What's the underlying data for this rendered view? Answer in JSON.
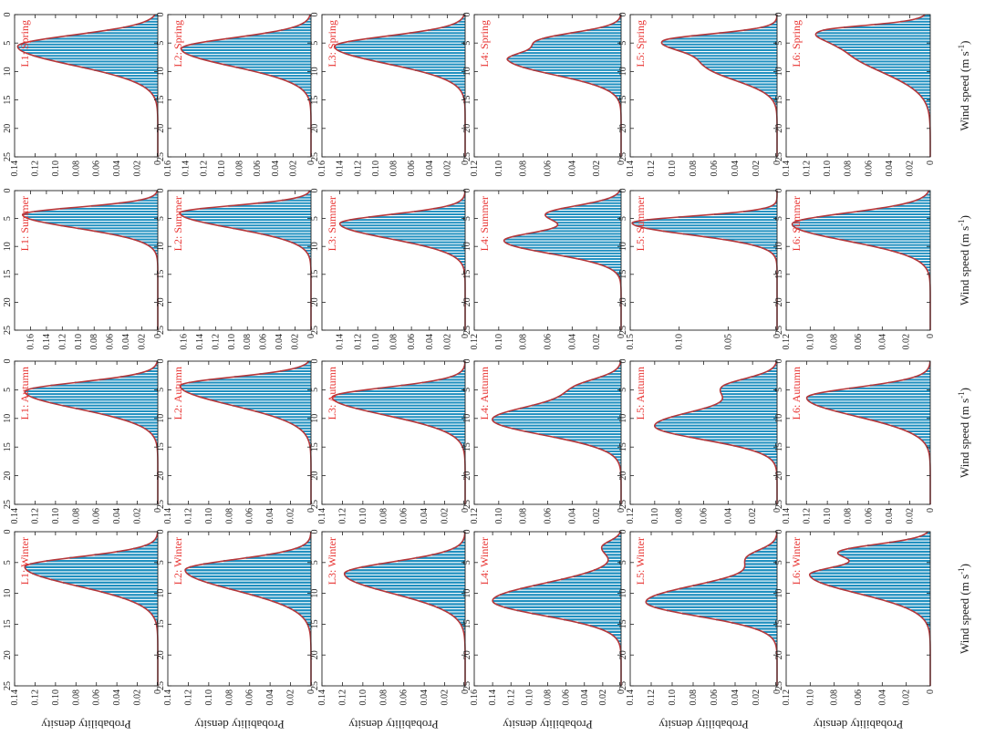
{
  "figure": {
    "x_axis_label": "Wind speed (m s",
    "x_axis_label_sup": "-1",
    "x_axis_label_end": ")",
    "y_axis_label": "Probability density",
    "x_ticks": [
      "0",
      "5",
      "10",
      "15",
      "20",
      "25"
    ],
    "bar_color": "#1f8fbf",
    "bar_stripe_color": "#ffffff",
    "curve_color": "#b5373a",
    "title_color": "#e8312f"
  },
  "chart_data": [
    {
      "type": "bar",
      "title": "L1: Spring",
      "xlim": [
        0,
        25
      ],
      "ylim": [
        0,
        0.14
      ],
      "y_ticks": [
        "0.02",
        "0.04",
        "0.06",
        "0.08",
        "0.10",
        "0.12",
        "0.14"
      ],
      "peaks": [
        {
          "mu": 5.6,
          "s1": 2.0,
          "s2": 3.3,
          "h": 0.137
        }
      ]
    },
    {
      "type": "bar",
      "title": "L1: Summer",
      "xlim": [
        0,
        25
      ],
      "ylim": [
        0,
        0.18
      ],
      "y_ticks": [
        "0.02",
        "0.04",
        "0.06",
        "0.08",
        "0.10",
        "0.12",
        "0.14",
        "0.16"
      ],
      "peaks": [
        {
          "mu": 4.3,
          "s1": 1.3,
          "s2": 2.4,
          "h": 0.17
        }
      ]
    },
    {
      "type": "bar",
      "title": "L1: Autumn",
      "xlim": [
        0,
        25
      ],
      "ylim": [
        0,
        0.14
      ],
      "y_ticks": [
        "0.02",
        "0.04",
        "0.06",
        "0.08",
        "0.10",
        "0.12",
        "0.14"
      ],
      "peaks": [
        {
          "mu": 5.3,
          "s1": 1.6,
          "s2": 3.0,
          "h": 0.13
        }
      ]
    },
    {
      "type": "bar",
      "title": "L1: Winter",
      "xlim": [
        0,
        25
      ],
      "ylim": [
        0,
        0.14
      ],
      "y_ticks": [
        "0.02",
        "0.04",
        "0.06",
        "0.08",
        "0.10",
        "0.12",
        "0.14"
      ],
      "peaks": [
        {
          "mu": 5.7,
          "s1": 1.6,
          "s2": 3.1,
          "h": 0.13
        }
      ]
    },
    {
      "type": "bar",
      "title": "L2: Spring",
      "xlim": [
        0,
        25
      ],
      "ylim": [
        0,
        0.16
      ],
      "y_ticks": [
        "0.02",
        "0.04",
        "0.06",
        "0.08",
        "0.10",
        "0.12",
        "0.14",
        "0.16"
      ],
      "peaks": [
        {
          "mu": 6.0,
          "s1": 1.9,
          "s2": 3.1,
          "h": 0.145
        }
      ]
    },
    {
      "type": "bar",
      "title": "L2: Summer",
      "xlim": [
        0,
        25
      ],
      "ylim": [
        0,
        0.18
      ],
      "y_ticks": [
        "0.02",
        "0.04",
        "0.06",
        "0.08",
        "0.10",
        "0.12",
        "0.14",
        "0.16"
      ],
      "peaks": [
        {
          "mu": 4.0,
          "s1": 1.3,
          "s2": 2.7,
          "h": 0.165
        }
      ]
    },
    {
      "type": "bar",
      "title": "L2: Autumn",
      "xlim": [
        0,
        25
      ],
      "ylim": [
        0,
        0.14
      ],
      "y_ticks": [
        "0.02",
        "0.04",
        "0.06",
        "0.08",
        "0.10",
        "0.12",
        "0.14"
      ],
      "peaks": [
        {
          "mu": 4.3,
          "s1": 1.5,
          "s2": 3.4,
          "h": 0.128
        }
      ]
    },
    {
      "type": "bar",
      "title": "L2: Winter",
      "xlim": [
        0,
        25
      ],
      "ylim": [
        0,
        0.14
      ],
      "y_ticks": [
        "0.02",
        "0.04",
        "0.06",
        "0.08",
        "0.10",
        "0.12",
        "0.14"
      ],
      "peaks": [
        {
          "mu": 6.2,
          "s1": 1.7,
          "s2": 3.3,
          "h": 0.123
        }
      ]
    },
    {
      "type": "bar",
      "title": "L3: Spring",
      "xlim": [
        0,
        25
      ],
      "ylim": [
        0,
        0.16
      ],
      "y_ticks": [
        "0.02",
        "0.04",
        "0.06",
        "0.08",
        "0.10",
        "0.12",
        "0.14",
        "0.16"
      ],
      "peaks": [
        {
          "mu": 5.6,
          "s1": 1.8,
          "s2": 3.0,
          "h": 0.146
        }
      ]
    },
    {
      "type": "bar",
      "title": "L3: Summer",
      "xlim": [
        0,
        25
      ],
      "ylim": [
        0,
        0.16
      ],
      "y_ticks": [
        "0.02",
        "0.04",
        "0.06",
        "0.08",
        "0.10",
        "0.12",
        "0.14"
      ],
      "peaks": [
        {
          "mu": 5.9,
          "s1": 1.6,
          "s2": 2.7,
          "h": 0.14
        }
      ]
    },
    {
      "type": "bar",
      "title": "L3: Autumn",
      "xlim": [
        0,
        25
      ],
      "ylim": [
        0,
        0.14
      ],
      "y_ticks": [
        "0.02",
        "0.04",
        "0.06",
        "0.08",
        "0.10",
        "0.12",
        "0.14"
      ],
      "peaks": [
        {
          "mu": 6.3,
          "s1": 1.7,
          "s2": 3.1,
          "h": 0.13
        }
      ]
    },
    {
      "type": "bar",
      "title": "L3: Winter",
      "xlim": [
        0,
        25
      ],
      "ylim": [
        0,
        0.14
      ],
      "y_ticks": [
        "0.02",
        "0.04",
        "0.06",
        "0.08",
        "0.10",
        "0.12",
        "0.14"
      ],
      "peaks": [
        {
          "mu": 6.8,
          "s1": 1.9,
          "s2": 3.2,
          "h": 0.118
        }
      ]
    },
    {
      "type": "bar",
      "title": "L4: Spring",
      "xlim": [
        0,
        25
      ],
      "ylim": [
        0,
        0.12
      ],
      "y_ticks": [
        "0.02",
        "0.04",
        "0.06",
        "0.08",
        "0.10",
        "0.12"
      ],
      "peaks": [
        {
          "mu": 4.5,
          "s1": 1.4,
          "s2": 1.4,
          "h": 0.06
        },
        {
          "mu": 8.0,
          "s1": 1.6,
          "s2": 2.6,
          "h": 0.09
        }
      ]
    },
    {
      "type": "bar",
      "title": "L4: Summer",
      "xlim": [
        0,
        25
      ],
      "ylim": [
        0,
        0.12
      ],
      "y_ticks": [
        "0.02",
        "0.04",
        "0.06",
        "0.08",
        "0.10",
        "0.12"
      ],
      "peaks": [
        {
          "mu": 4.2,
          "s1": 1.5,
          "s2": 1.6,
          "h": 0.06
        },
        {
          "mu": 9.0,
          "s1": 1.7,
          "s2": 2.3,
          "h": 0.095
        }
      ]
    },
    {
      "type": "bar",
      "title": "L4: Autumn",
      "xlim": [
        0,
        25
      ],
      "ylim": [
        0,
        0.12
      ],
      "y_ticks": [
        "0.02",
        "0.04",
        "0.06",
        "0.08",
        "0.10",
        "0.12"
      ],
      "peaks": [
        {
          "mu": 4.5,
          "s1": 1.5,
          "s2": 1.8,
          "h": 0.03
        },
        {
          "mu": 10.2,
          "s1": 2.6,
          "s2": 2.7,
          "h": 0.105
        }
      ]
    },
    {
      "type": "bar",
      "title": "L4: Winter",
      "xlim": [
        0,
        25
      ],
      "ylim": [
        0,
        0.16
      ],
      "y_ticks": [
        "0.02",
        "0.04",
        "0.06",
        "0.08",
        "0.10",
        "0.12",
        "0.14",
        "0.16"
      ],
      "peaks": [
        {
          "mu": 2.5,
          "s1": 1.0,
          "s2": 1.3,
          "h": 0.02
        },
        {
          "mu": 11.2,
          "s1": 2.8,
          "s2": 2.4,
          "h": 0.14
        }
      ]
    },
    {
      "type": "bar",
      "title": "L5: Spring",
      "xlim": [
        0,
        25
      ],
      "ylim": [
        0,
        0.14
      ],
      "y_ticks": [
        "0.02",
        "0.04",
        "0.06",
        "0.08",
        "0.10",
        "0.12",
        "0.14"
      ],
      "peaks": [
        {
          "mu": 4.6,
          "s1": 1.2,
          "s2": 1.8,
          "h": 0.1
        },
        {
          "mu": 9.0,
          "s1": 2.2,
          "s2": 2.6,
          "h": 0.065
        }
      ]
    },
    {
      "type": "bar",
      "title": "L5: Summer",
      "xlim": [
        0,
        25
      ],
      "ylim": [
        0,
        0.15
      ],
      "y_ticks": [
        "0.05",
        "0.10",
        "0.15"
      ],
      "peaks": [
        {
          "mu": 5.8,
          "s1": 1.2,
          "s2": 2.1,
          "h": 0.148
        }
      ]
    },
    {
      "type": "bar",
      "title": "L5: Autumn",
      "xlim": [
        0,
        25
      ],
      "ylim": [
        0,
        0.12
      ],
      "y_ticks": [
        "0.02",
        "0.04",
        "0.06",
        "0.08",
        "0.10",
        "0.12"
      ],
      "peaks": [
        {
          "mu": 4.5,
          "s1": 1.5,
          "s2": 1.8,
          "h": 0.04
        },
        {
          "mu": 11.3,
          "s1": 2.8,
          "s2": 2.4,
          "h": 0.1
        }
      ]
    },
    {
      "type": "bar",
      "title": "L5: Winter",
      "xlim": [
        0,
        25
      ],
      "ylim": [
        0,
        0.14
      ],
      "y_ticks": [
        "0.02",
        "0.04",
        "0.06",
        "0.08",
        "0.10",
        "0.12",
        "0.14"
      ],
      "peaks": [
        {
          "mu": 4.2,
          "s1": 1.3,
          "s2": 1.5,
          "h": 0.025
        },
        {
          "mu": 11.4,
          "s1": 2.8,
          "s2": 2.3,
          "h": 0.125
        }
      ]
    },
    {
      "type": "bar",
      "title": "L6: Spring",
      "xlim": [
        0,
        25
      ],
      "ylim": [
        0,
        0.14
      ],
      "y_ticks": [
        "0.02",
        "0.04",
        "0.06",
        "0.08",
        "0.10",
        "0.12",
        "0.14"
      ],
      "peaks": [
        {
          "mu": 2.8,
          "s1": 0.9,
          "s2": 1.5,
          "h": 0.07
        },
        {
          "mu": 6.0,
          "s1": 2.5,
          "s2": 4.0,
          "h": 0.08
        }
      ]
    },
    {
      "type": "bar",
      "title": "L6: Summer",
      "xlim": [
        0,
        25
      ],
      "ylim": [
        0,
        0.12
      ],
      "y_ticks": [
        "0.02",
        "0.04",
        "0.06",
        "0.08",
        "0.10",
        "0.12"
      ],
      "peaks": [
        {
          "mu": 6.0,
          "s1": 2.0,
          "s2": 3.0,
          "h": 0.115
        }
      ]
    },
    {
      "type": "bar",
      "title": "L6: Autumn",
      "xlim": [
        0,
        25
      ],
      "ylim": [
        0,
        0.14
      ],
      "y_ticks": [
        "0.02",
        "0.04",
        "0.06",
        "0.08",
        "0.10",
        "0.12",
        "0.14"
      ],
      "peaks": [
        {
          "mu": 6.4,
          "s1": 1.8,
          "s2": 3.2,
          "h": 0.12
        }
      ]
    },
    {
      "type": "bar",
      "title": "L6: Winter",
      "xlim": [
        0,
        25
      ],
      "ylim": [
        0,
        0.12
      ],
      "y_ticks": [
        "0.02",
        "0.04",
        "0.06",
        "0.08",
        "0.10",
        "0.12"
      ],
      "peaks": [
        {
          "mu": 3.2,
          "s1": 1.2,
          "s2": 1.2,
          "h": 0.07
        },
        {
          "mu": 7.0,
          "s1": 1.6,
          "s2": 3.0,
          "h": 0.1
        }
      ]
    }
  ]
}
